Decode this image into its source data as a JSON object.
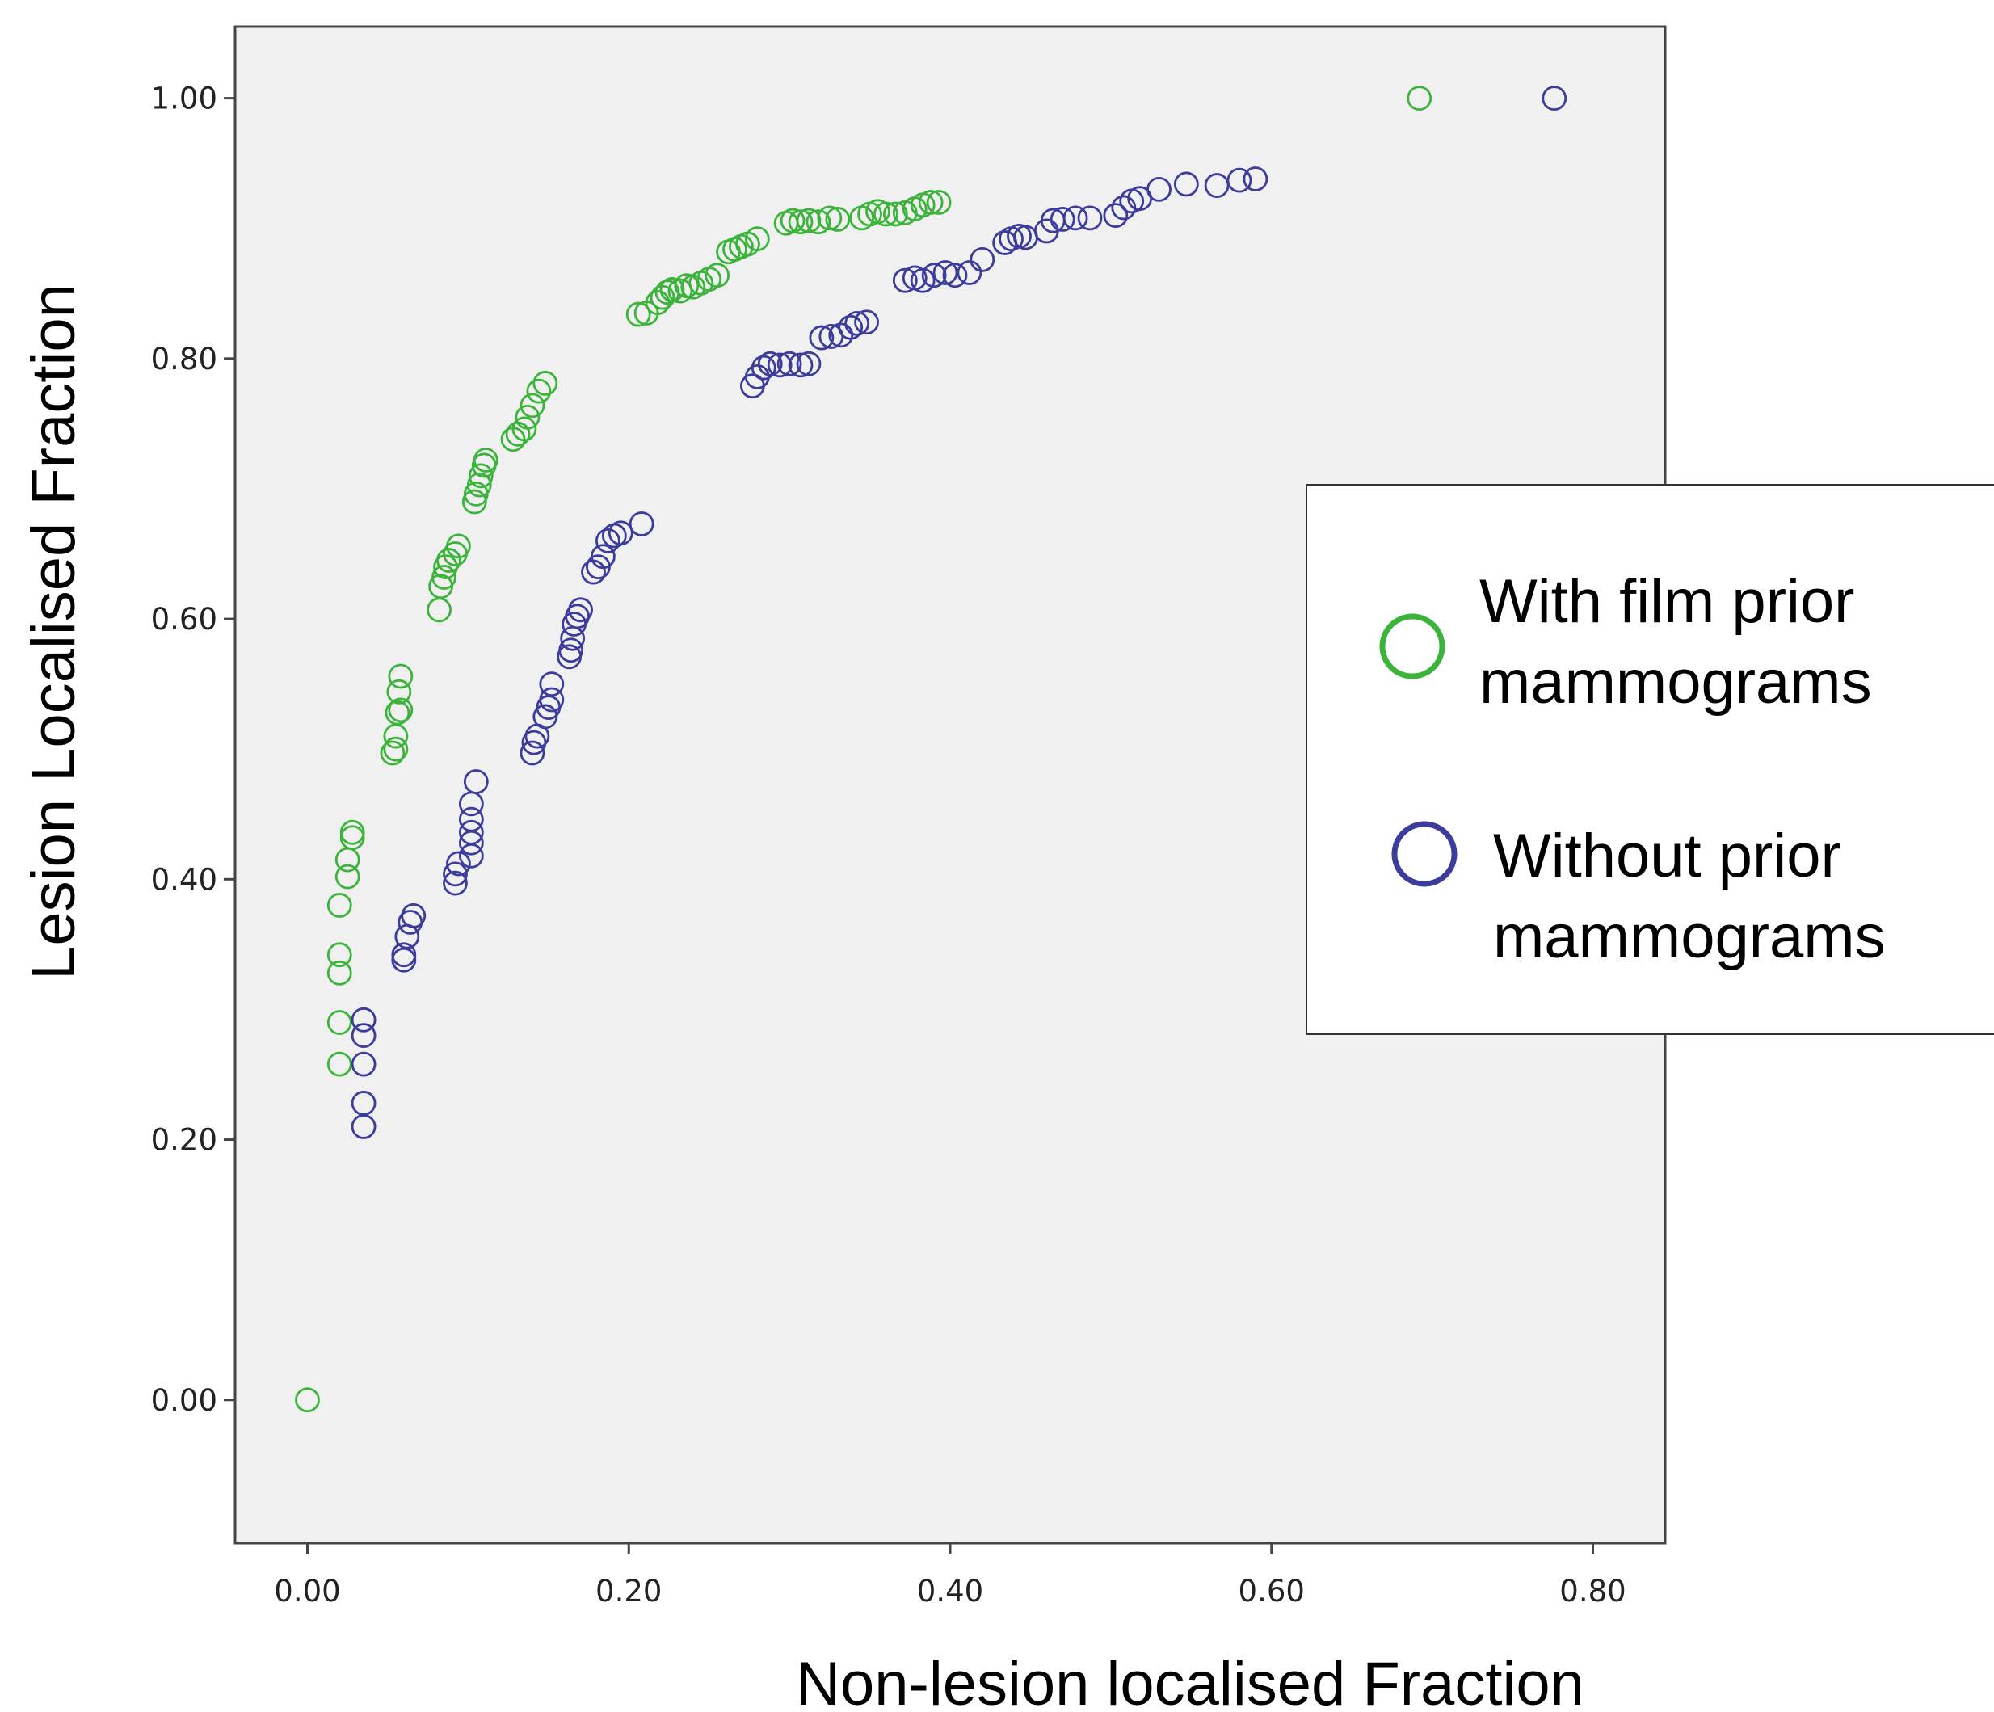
{
  "chart_data": {
    "type": "scatter",
    "title": "",
    "xlabel": "Non-lesion localised Fraction",
    "ylabel": "Lesion Localised Fraction",
    "xlim": [
      -0.045,
      0.845
    ],
    "ylim": [
      -0.11,
      1.055
    ],
    "x_ticks": [
      0.0,
      0.2,
      0.4,
      0.6,
      0.8
    ],
    "x_tick_labels": [
      "0.00",
      "0.20",
      "0.40",
      "0.60",
      "0.80"
    ],
    "y_ticks": [
      0.0,
      0.2,
      0.4,
      0.6,
      0.8,
      1.0
    ],
    "y_tick_labels": [
      "0.00",
      "0.20",
      "0.40",
      "0.60",
      "0.80",
      "1.00"
    ],
    "grid": false,
    "plot_background": "#f0f0f0",
    "legend_position": "right",
    "marker": "open-circle",
    "series": [
      {
        "name": "With film prior mammograms",
        "color": "#3cb43c",
        "points": [
          [
            0.0,
            0.0
          ],
          [
            0.02,
            0.258
          ],
          [
            0.02,
            0.29
          ],
          [
            0.02,
            0.328
          ],
          [
            0.02,
            0.342
          ],
          [
            0.02,
            0.38
          ],
          [
            0.025,
            0.402
          ],
          [
            0.025,
            0.415
          ],
          [
            0.028,
            0.432
          ],
          [
            0.028,
            0.436
          ],
          [
            0.053,
            0.497
          ],
          [
            0.055,
            0.5
          ],
          [
            0.055,
            0.51
          ],
          [
            0.056,
            0.528
          ],
          [
            0.058,
            0.53
          ],
          [
            0.057,
            0.544
          ],
          [
            0.058,
            0.556
          ],
          [
            0.082,
            0.607
          ],
          [
            0.083,
            0.625
          ],
          [
            0.085,
            0.632
          ],
          [
            0.086,
            0.64
          ],
          [
            0.088,
            0.645
          ],
          [
            0.092,
            0.65
          ],
          [
            0.094,
            0.656
          ],
          [
            0.104,
            0.69
          ],
          [
            0.105,
            0.696
          ],
          [
            0.107,
            0.703
          ],
          [
            0.108,
            0.71
          ],
          [
            0.11,
            0.718
          ],
          [
            0.111,
            0.722
          ],
          [
            0.128,
            0.738
          ],
          [
            0.131,
            0.742
          ],
          [
            0.135,
            0.746
          ],
          [
            0.137,
            0.755
          ],
          [
            0.14,
            0.764
          ],
          [
            0.144,
            0.775
          ],
          [
            0.148,
            0.781
          ],
          [
            0.206,
            0.834
          ],
          [
            0.211,
            0.835
          ],
          [
            0.218,
            0.843
          ],
          [
            0.221,
            0.847
          ],
          [
            0.224,
            0.851
          ],
          [
            0.227,
            0.853
          ],
          [
            0.232,
            0.852
          ],
          [
            0.236,
            0.856
          ],
          [
            0.24,
            0.855
          ],
          [
            0.245,
            0.858
          ],
          [
            0.25,
            0.861
          ],
          [
            0.255,
            0.864
          ],
          [
            0.262,
            0.882
          ],
          [
            0.266,
            0.884
          ],
          [
            0.27,
            0.886
          ],
          [
            0.274,
            0.888
          ],
          [
            0.28,
            0.892
          ],
          [
            0.298,
            0.904
          ],
          [
            0.302,
            0.906
          ],
          [
            0.307,
            0.905
          ],
          [
            0.312,
            0.906
          ],
          [
            0.318,
            0.905
          ],
          [
            0.325,
            0.908
          ],
          [
            0.33,
            0.907
          ],
          [
            0.345,
            0.908
          ],
          [
            0.35,
            0.911
          ],
          [
            0.355,
            0.913
          ],
          [
            0.36,
            0.911
          ],
          [
            0.366,
            0.911
          ],
          [
            0.372,
            0.912
          ],
          [
            0.378,
            0.915
          ],
          [
            0.383,
            0.918
          ],
          [
            0.388,
            0.92
          ],
          [
            0.393,
            0.92
          ],
          [
            0.692,
            1.0
          ]
        ]
      },
      {
        "name": "Without prior mammograms",
        "color": "#3c3c9c",
        "points": [
          [
            0.035,
            0.21
          ],
          [
            0.035,
            0.228
          ],
          [
            0.035,
            0.258
          ],
          [
            0.035,
            0.28
          ],
          [
            0.035,
            0.292
          ],
          [
            0.06,
            0.338
          ],
          [
            0.06,
            0.342
          ],
          [
            0.062,
            0.356
          ],
          [
            0.064,
            0.367
          ],
          [
            0.066,
            0.372
          ],
          [
            0.092,
            0.397
          ],
          [
            0.092,
            0.404
          ],
          [
            0.094,
            0.412
          ],
          [
            0.102,
            0.418
          ],
          [
            0.102,
            0.428
          ],
          [
            0.102,
            0.436
          ],
          [
            0.102,
            0.446
          ],
          [
            0.102,
            0.458
          ],
          [
            0.105,
            0.475
          ],
          [
            0.14,
            0.497
          ],
          [
            0.141,
            0.505
          ],
          [
            0.143,
            0.51
          ],
          [
            0.148,
            0.525
          ],
          [
            0.15,
            0.532
          ],
          [
            0.152,
            0.538
          ],
          [
            0.152,
            0.55
          ],
          [
            0.163,
            0.571
          ],
          [
            0.164,
            0.576
          ],
          [
            0.165,
            0.585
          ],
          [
            0.166,
            0.596
          ],
          [
            0.168,
            0.602
          ],
          [
            0.17,
            0.607
          ],
          [
            0.178,
            0.636
          ],
          [
            0.181,
            0.64
          ],
          [
            0.184,
            0.648
          ],
          [
            0.187,
            0.66
          ],
          [
            0.191,
            0.664
          ],
          [
            0.195,
            0.666
          ],
          [
            0.208,
            0.673
          ],
          [
            0.277,
            0.779
          ],
          [
            0.28,
            0.786
          ],
          [
            0.284,
            0.793
          ],
          [
            0.288,
            0.796
          ],
          [
            0.294,
            0.795
          ],
          [
            0.3,
            0.796
          ],
          [
            0.307,
            0.795
          ],
          [
            0.312,
            0.796
          ],
          [
            0.32,
            0.816
          ],
          [
            0.326,
            0.817
          ],
          [
            0.332,
            0.818
          ],
          [
            0.338,
            0.824
          ],
          [
            0.342,
            0.827
          ],
          [
            0.348,
            0.828
          ],
          [
            0.372,
            0.86
          ],
          [
            0.378,
            0.862
          ],
          [
            0.383,
            0.86
          ],
          [
            0.39,
            0.864
          ],
          [
            0.397,
            0.866
          ],
          [
            0.403,
            0.864
          ],
          [
            0.412,
            0.866
          ],
          [
            0.42,
            0.876
          ],
          [
            0.434,
            0.889
          ],
          [
            0.438,
            0.892
          ],
          [
            0.443,
            0.894
          ],
          [
            0.447,
            0.893
          ],
          [
            0.46,
            0.898
          ],
          [
            0.464,
            0.906
          ],
          [
            0.47,
            0.907
          ],
          [
            0.478,
            0.908
          ],
          [
            0.487,
            0.908
          ],
          [
            0.503,
            0.91
          ],
          [
            0.508,
            0.916
          ],
          [
            0.513,
            0.921
          ],
          [
            0.518,
            0.923
          ],
          [
            0.53,
            0.93
          ],
          [
            0.547,
            0.934
          ],
          [
            0.566,
            0.933
          ],
          [
            0.58,
            0.937
          ],
          [
            0.59,
            0.938
          ],
          [
            0.776,
            1.0
          ]
        ]
      }
    ]
  }
}
